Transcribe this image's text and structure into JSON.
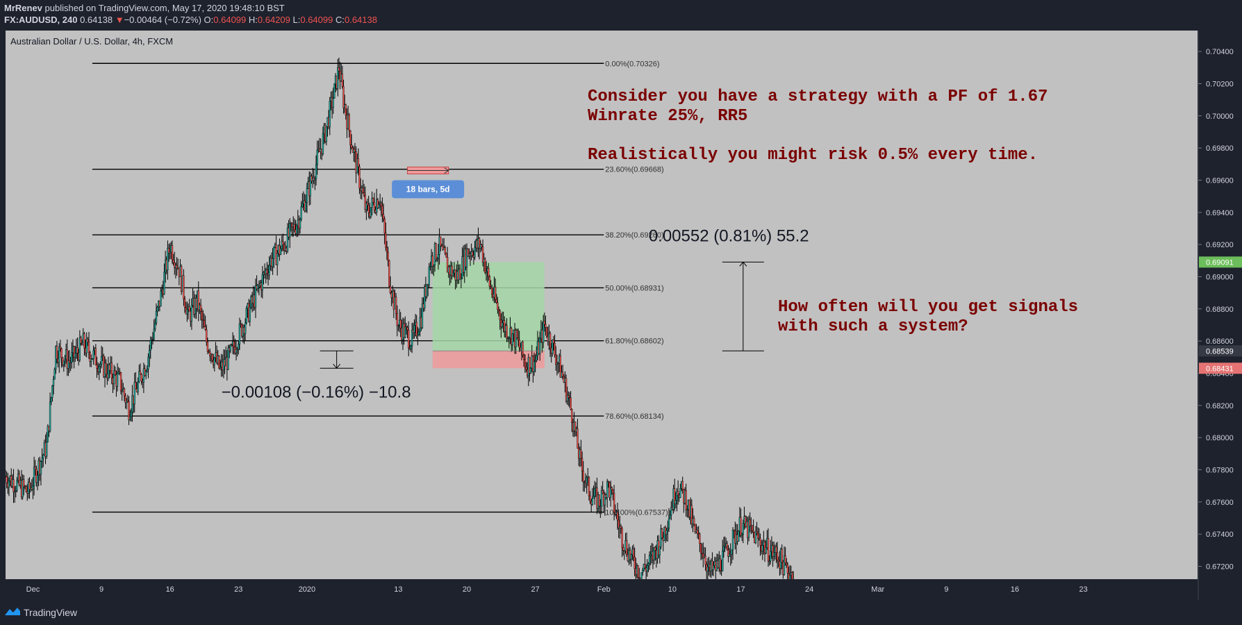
{
  "header": {
    "publisher": "MrRenev",
    "published_suffix": " published on TradingView.com, May 17, 2020 19:48:10 BST",
    "symbol": "FX:AUDUSD, 240",
    "last_price": "0.64138",
    "change_arrow": "▼",
    "change": "−0.00464 (−0.72%)",
    "o_label": "O:",
    "o_value": "0.64099",
    "h_label": "H:",
    "h_value": "0.64209",
    "l_label": "L:",
    "l_value": "0.64099",
    "c_label": "C:",
    "c_value": "0.64138"
  },
  "footer": {
    "brand": "TradingView"
  },
  "chart_data": {
    "type": "candlestick",
    "title": "Australian Dollar / U.S. Dollar, 4h, FXCM",
    "y_ticks": [
      "0.70400",
      "0.70200",
      "0.70000",
      "0.69800",
      "0.69600",
      "0.69400",
      "0.69200",
      "0.69000",
      "0.68800",
      "0.68600",
      "0.68400",
      "0.68200",
      "0.68000",
      "0.67800",
      "0.67600",
      "0.67400",
      "0.67200"
    ],
    "ylim": [
      0.6712,
      0.7053
    ],
    "x_ticks": [
      {
        "label": "Dec",
        "bar": 0
      },
      {
        "label": "9",
        "bar": 30
      },
      {
        "label": "16",
        "bar": 60
      },
      {
        "label": "23",
        "bar": 90
      },
      {
        "label": "2020",
        "bar": 120
      },
      {
        "label": "13",
        "bar": 160
      },
      {
        "label": "20",
        "bar": 190
      },
      {
        "label": "27",
        "bar": 220
      },
      {
        "label": "Feb",
        "bar": 250
      },
      {
        "label": "10",
        "bar": 280
      },
      {
        "label": "17",
        "bar": 310
      },
      {
        "label": "24",
        "bar": 340
      },
      {
        "label": "Mar",
        "bar": 370
      },
      {
        "label": "9",
        "bar": 400
      },
      {
        "label": "16",
        "bar": 430
      },
      {
        "label": "23",
        "bar": 460
      }
    ],
    "x_bar_range": [
      -12,
      510
    ],
    "price_labels": [
      {
        "value": 0.69091,
        "text": "0.69091",
        "color": "#6cbd5b"
      },
      {
        "value": 0.68539,
        "text": "0.68539",
        "color": "#363a45"
      },
      {
        "value": 0.68431,
        "text": "0.68431",
        "color": "#e57373"
      }
    ],
    "fibonacci": {
      "bar_start": 26,
      "bar_end": 250,
      "levels": [
        {
          "value": 0.70326,
          "label": "0.00%(0.70326)"
        },
        {
          "value": 0.69668,
          "label": "23.60%(0.69668)"
        },
        {
          "value": 0.6926,
          "label": "38.20%(0.69260)"
        },
        {
          "value": 0.68931,
          "label": "50.00%(0.68931)"
        },
        {
          "value": 0.68602,
          "label": "61.80%(0.68602)"
        },
        {
          "value": 0.68134,
          "label": "78.60%(0.68134)"
        },
        {
          "value": 0.67537,
          "label": "100.00%(0.67537)"
        }
      ]
    },
    "position": {
      "bar_start": 175,
      "bar_end": 224,
      "entry": 0.68539,
      "target": 0.69091,
      "stop": 0.68431,
      "profit_color": "#a5d6a7",
      "loss_color": "#ef9a9a"
    },
    "date_range": {
      "label": "18 bars, 5d",
      "bar_start": 164,
      "bar_end": 182,
      "value": 0.6966
    },
    "measure_up": {
      "label": "0.00552 (0.81%) 55.2",
      "bar": 311,
      "from": 0.68539,
      "to": 0.69091
    },
    "measure_down": {
      "label": "−0.00108 (−0.16%) −10.8",
      "bar": 133,
      "from": 0.68539,
      "to": 0.68431
    },
    "annotations": [
      {
        "lines": [
          "Consider you have a strategy with a PF of 1.67",
          "Winrate 25%, RR5",
          "",
          "Realistically you might risk 0.5% every time."
        ]
      },
      {
        "lines": [
          "How often will you get signals",
          "with such a system?"
        ]
      }
    ],
    "path_anchors": [
      [
        -12,
        0.6776
      ],
      [
        -2,
        0.6766
      ],
      [
        6,
        0.6795
      ],
      [
        10,
        0.6855
      ],
      [
        16,
        0.6847
      ],
      [
        22,
        0.6858
      ],
      [
        30,
        0.6845
      ],
      [
        38,
        0.6835
      ],
      [
        42,
        0.6818
      ],
      [
        50,
        0.6848
      ],
      [
        56,
        0.6888
      ],
      [
        60,
        0.692
      ],
      [
        64,
        0.6905
      ],
      [
        68,
        0.6875
      ],
      [
        72,
        0.6885
      ],
      [
        76,
        0.686
      ],
      [
        82,
        0.6842
      ],
      [
        86,
        0.685
      ],
      [
        92,
        0.687
      ],
      [
        98,
        0.689
      ],
      [
        104,
        0.691
      ],
      [
        110,
        0.692
      ],
      [
        116,
        0.6935
      ],
      [
        122,
        0.696
      ],
      [
        128,
        0.699
      ],
      [
        132,
        0.7015
      ],
      [
        134,
        0.703
      ],
      [
        136,
        0.701
      ],
      [
        140,
        0.698
      ],
      [
        146,
        0.694
      ],
      [
        152,
        0.695
      ],
      [
        156,
        0.69
      ],
      [
        160,
        0.687
      ],
      [
        166,
        0.686
      ],
      [
        170,
        0.6875
      ],
      [
        174,
        0.691
      ],
      [
        178,
        0.6918
      ],
      [
        182,
        0.6905
      ],
      [
        186,
        0.69
      ],
      [
        190,
        0.6915
      ],
      [
        196,
        0.692
      ],
      [
        200,
        0.6895
      ],
      [
        206,
        0.687
      ],
      [
        212,
        0.686
      ],
      [
        216,
        0.6845
      ],
      [
        220,
        0.6848
      ],
      [
        224,
        0.687
      ],
      [
        228,
        0.6855
      ],
      [
        232,
        0.6838
      ],
      [
        236,
        0.6815
      ],
      [
        240,
        0.6782
      ],
      [
        244,
        0.6765
      ],
      [
        248,
        0.676
      ],
      [
        252,
        0.677
      ],
      [
        258,
        0.6738
      ],
      [
        262,
        0.6725
      ],
      [
        266,
        0.6716
      ],
      [
        270,
        0.6722
      ],
      [
        276,
        0.674
      ],
      [
        282,
        0.677
      ],
      [
        286,
        0.6762
      ],
      [
        290,
        0.674
      ],
      [
        294,
        0.6728
      ],
      [
        296,
        0.6716
      ],
      [
        300,
        0.672
      ],
      [
        306,
        0.6735
      ],
      [
        310,
        0.6746
      ],
      [
        314,
        0.6742
      ],
      [
        318,
        0.6736
      ],
      [
        322,
        0.673
      ],
      [
        326,
        0.6727
      ],
      [
        330,
        0.6718
      ],
      [
        333,
        0.6714
      ]
    ]
  }
}
